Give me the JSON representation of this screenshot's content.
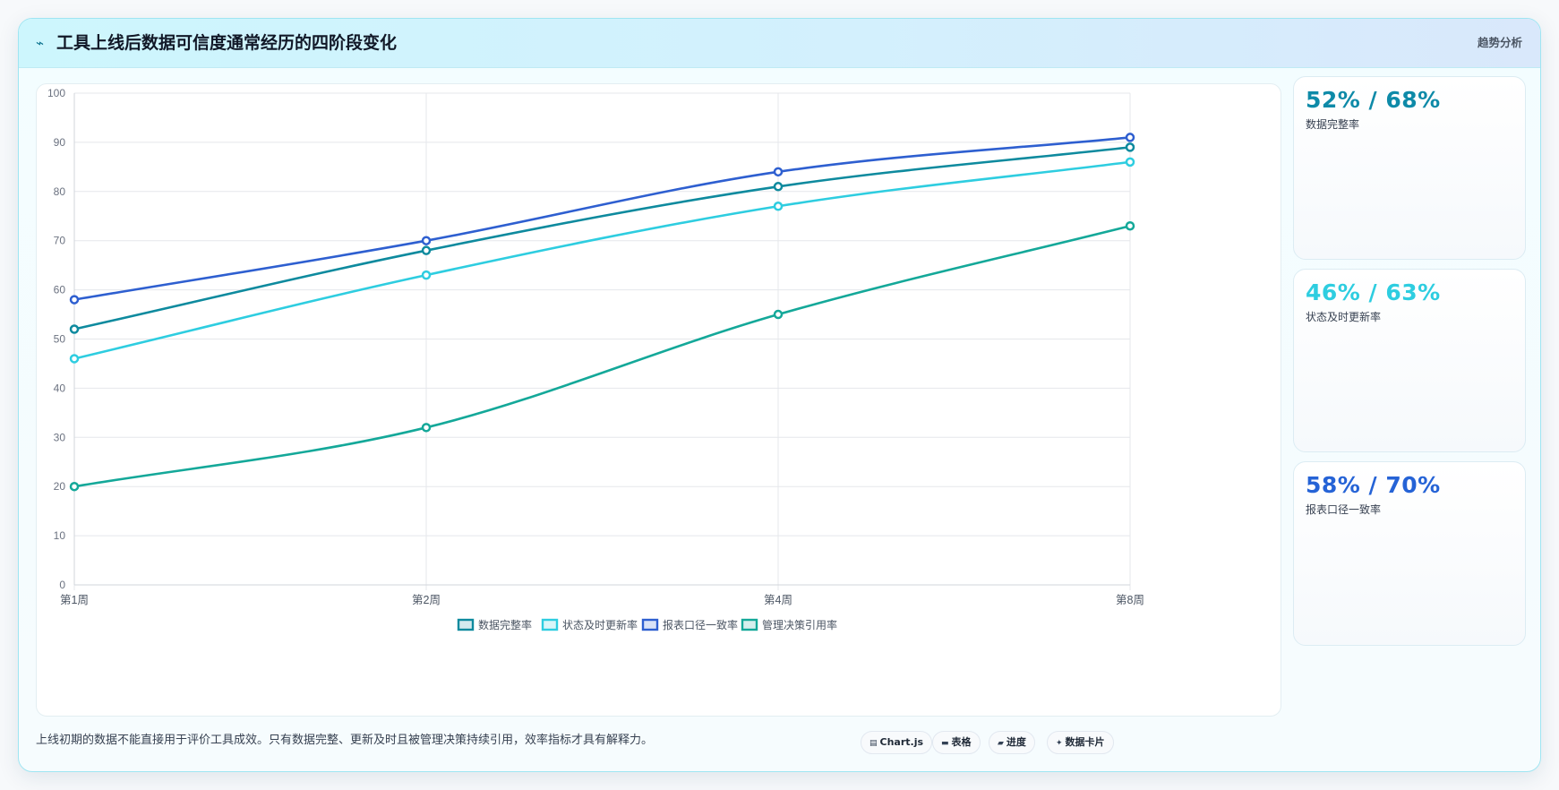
{
  "header": {
    "title": "工具上线后数据可信度通常经历的四阶段变化",
    "icon": "bolt-icon",
    "tag": "趋势分析"
  },
  "chart_data": {
    "type": "line",
    "categories": [
      "第1周",
      "第2周",
      "第4周",
      "第8周"
    ],
    "series": [
      {
        "name": "数据完整率",
        "values": [
          52,
          68,
          81,
          89
        ],
        "color": "#0e8a9e"
      },
      {
        "name": "状态及时更新率",
        "values": [
          46,
          63,
          77,
          86
        ],
        "color": "#2ecde0"
      },
      {
        "name": "报表口径一致率",
        "values": [
          58,
          70,
          84,
          91
        ],
        "color": "#2e5fd0"
      },
      {
        "name": "管理决策引用率",
        "values": [
          20,
          32,
          55,
          73
        ],
        "color": "#14a899"
      }
    ],
    "ylim": [
      0,
      100
    ],
    "yticks": [
      0,
      10,
      20,
      30,
      40,
      50,
      60,
      70,
      80,
      90,
      100
    ],
    "grid": true,
    "legend": "bottom"
  },
  "stats": [
    {
      "value": "52% / 68%",
      "label": "数据完整率",
      "color": "#0e8aa8"
    },
    {
      "value": "46% / 63%",
      "label": "状态及时更新率",
      "color": "#2ecde0"
    },
    {
      "value": "58% / 70%",
      "label": "报表口径一致率",
      "color": "#2563d6"
    }
  ],
  "footer": {
    "note": "上线初期的数据不能直接用于评价工具成效。只有数据完整、更新及时且被管理决策持续引用，效率指标才具有解释力。",
    "pills": [
      {
        "label": "Chart.js",
        "icon": "chart-icon"
      },
      {
        "label": "表格",
        "icon": "table-icon"
      },
      {
        "label": "进度",
        "icon": "progress-icon"
      },
      {
        "label": "数据卡片",
        "icon": "sparkle-icon"
      }
    ]
  }
}
